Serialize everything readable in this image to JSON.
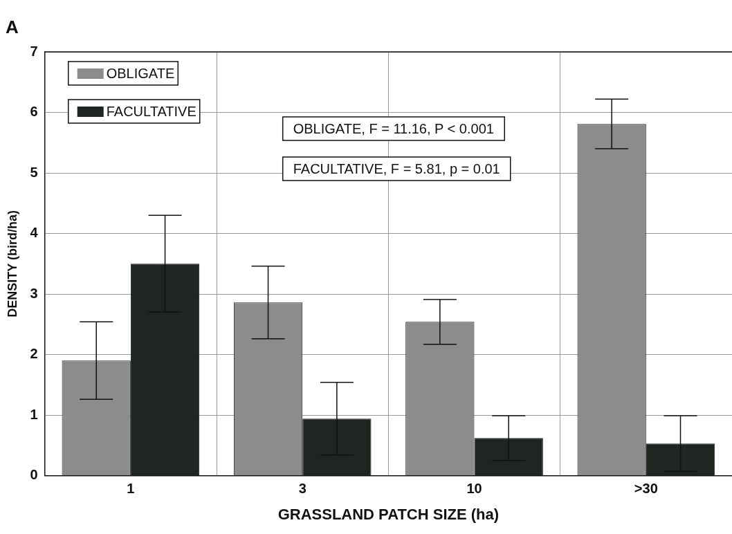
{
  "chart_data": {
    "type": "bar",
    "title": "A",
    "xlabel": "GRASSLAND PATCH SIZE (ha)",
    "ylabel": "DENSITY (bird/ha)",
    "categories": [
      "1",
      "3",
      "10",
      ">30"
    ],
    "series": [
      {
        "name": "OBLIGATE",
        "color": "#8c8c8c",
        "values": [
          1.9,
          2.86,
          2.54,
          5.81
        ],
        "errors": [
          0.64,
          0.6,
          0.37,
          0.41
        ]
      },
      {
        "name": "FACULTATIVE",
        "color": "#1f2521",
        "values": [
          3.5,
          0.94,
          0.62,
          0.53
        ],
        "errors": [
          0.8,
          0.6,
          0.37,
          0.46
        ]
      }
    ],
    "ylim": [
      0,
      7
    ],
    "yticks": [
      0,
      1,
      2,
      3,
      4,
      5,
      6,
      7
    ],
    "grid": true,
    "legend": "top left",
    "annotations": [
      "OBLIGATE, F = 11.16, P < 0.001",
      "FACULTATIVE, F = 5.81, p = 0.01"
    ]
  }
}
